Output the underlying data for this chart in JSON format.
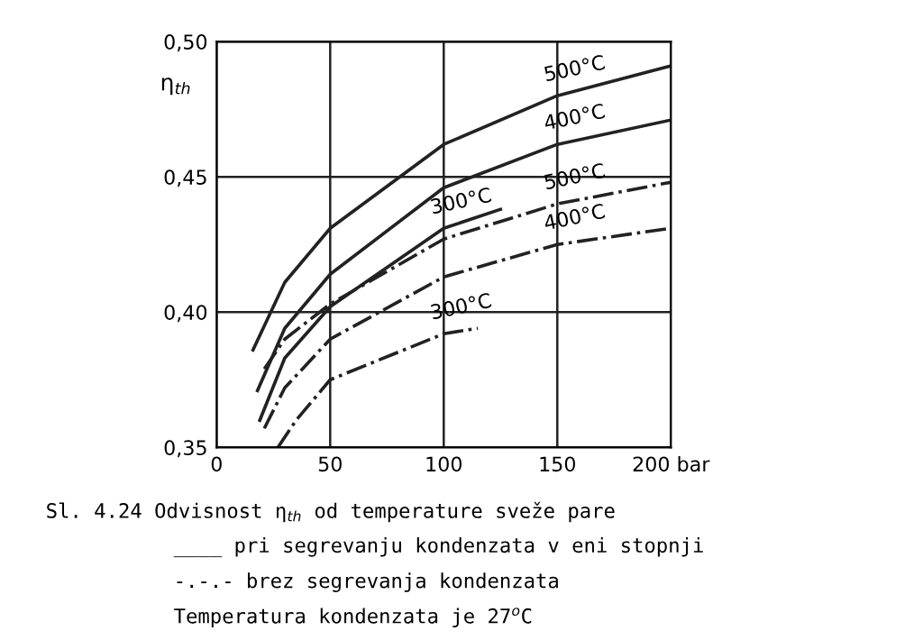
{
  "chart_data": {
    "type": "line",
    "ylabel": "η$_{th}$",
    "xlim": [
      0,
      200
    ],
    "ylim": [
      0.35,
      0.5
    ],
    "xticks": [
      0,
      50,
      100,
      150,
      {
        "value": 200,
        "label": "200 bar"
      }
    ],
    "yticks": [
      {
        "value": 0.35,
        "label": "0,35"
      },
      {
        "value": 0.4,
        "label": "0,40"
      },
      {
        "value": 0.45,
        "label": "0,45"
      },
      {
        "value": 0.5,
        "label": "0,50"
      }
    ],
    "grid": true,
    "series": [
      {
        "name": "500°C",
        "color": "#222222",
        "line_style": "solid",
        "x": [
          16,
          30,
          50,
          100,
          150,
          200
        ],
        "values": [
          0.386,
          0.411,
          0.431,
          0.462,
          0.48,
          0.491
        ]
      },
      {
        "name": "400°C",
        "color": "#222222",
        "line_style": "solid",
        "x": [
          18,
          30,
          50,
          100,
          150,
          200
        ],
        "values": [
          0.371,
          0.394,
          0.414,
          0.446,
          0.462,
          0.471
        ]
      },
      {
        "name": "300°C",
        "color": "#222222",
        "line_style": "solid",
        "x": [
          19,
          30,
          50,
          100,
          125
        ],
        "values": [
          0.36,
          0.383,
          0.402,
          0.431,
          0.438
        ]
      },
      {
        "name": "500°C",
        "color": "#222222",
        "line_style": "dashdot",
        "x": [
          21,
          30,
          50,
          100,
          150,
          200
        ],
        "values": [
          0.379,
          0.39,
          0.403,
          0.427,
          0.44,
          0.448
        ]
      },
      {
        "name": "400°C",
        "color": "#222222",
        "line_style": "dashdot",
        "x": [
          21,
          30,
          50,
          100,
          150,
          200
        ],
        "values": [
          0.357,
          0.372,
          0.39,
          0.413,
          0.425,
          0.431
        ]
      },
      {
        "name": "300°C",
        "color": "#222222",
        "line_style": "dashdot",
        "x": [
          27,
          35,
          50,
          100,
          115
        ],
        "values": [
          0.35,
          0.36,
          0.375,
          0.392,
          0.394
        ]
      }
    ],
    "annotations": [
      "Sl. 4.24 Odvisnost η$_{th}$ od temperature sveže pare",
      "____ pri segrevanju kondenzata v eni stopnji",
      "-.-.- brez segrevanja kondenzata",
      "Temperatura kondenzata je 27$^{o}$C"
    ]
  }
}
